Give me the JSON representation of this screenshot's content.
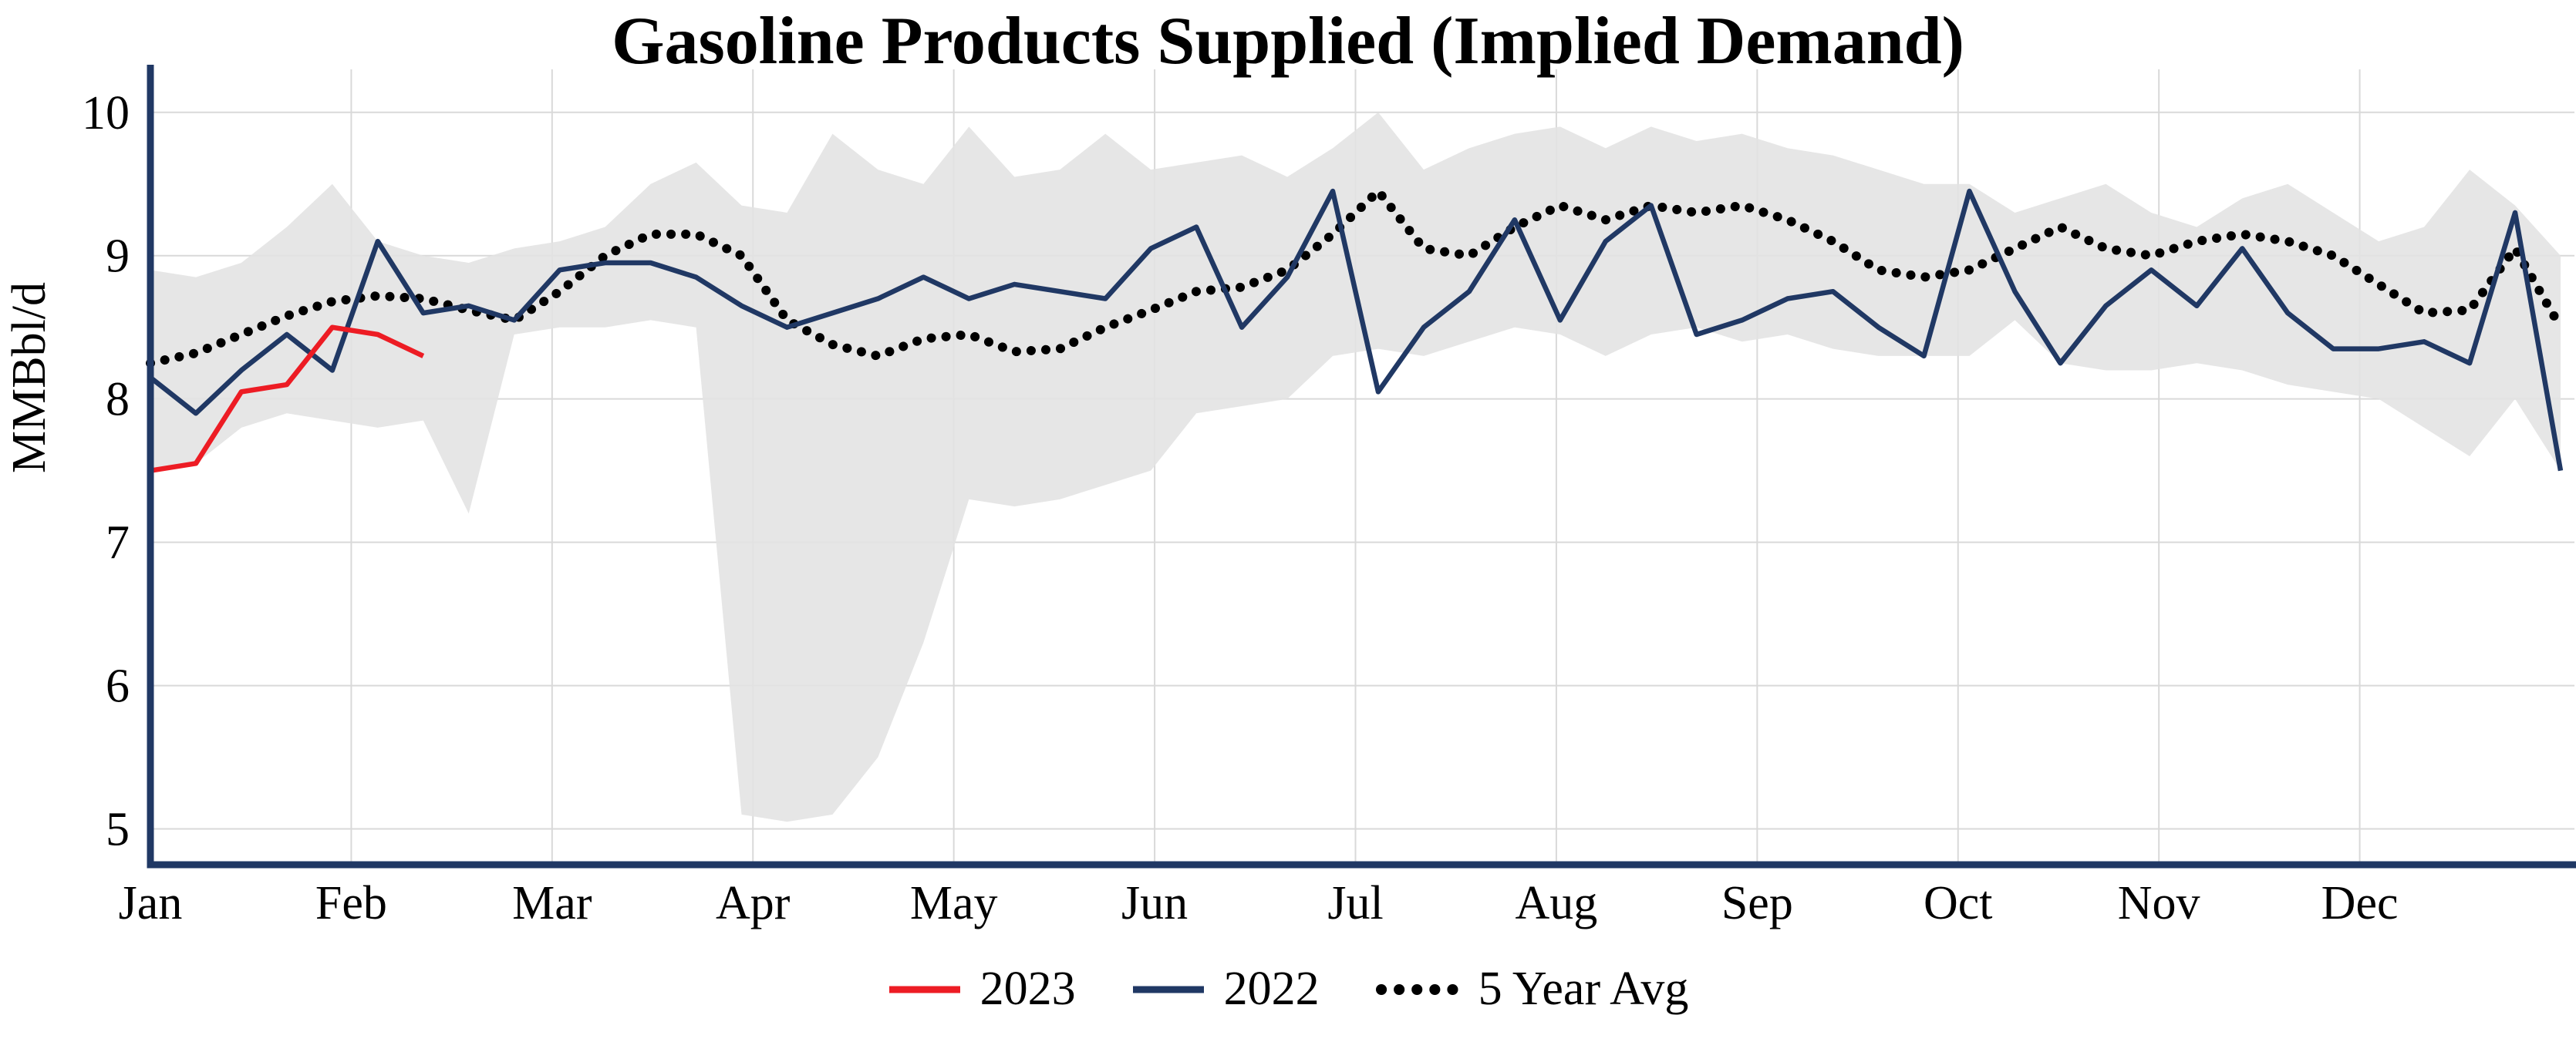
{
  "colors": {
    "axis": "#203864",
    "grid": "#d9d9d9",
    "band": "#e2e2e2",
    "text": "#000000"
  },
  "chart_data": {
    "type": "line",
    "title": "Gasoline Products Supplied (Implied Demand)",
    "ylabel": "MMBbl/d",
    "y_ticks": [
      5,
      6,
      7,
      8,
      9,
      10
    ],
    "ylim": [
      5,
      10
    ],
    "y_range_drawn": [
      4.75,
      10.3
    ],
    "x_unit": "weekly points, Jan through Dec",
    "x_tick_labels": [
      "Jan",
      "Feb",
      "Mar",
      "Apr",
      "May",
      "Jun",
      "Jul",
      "Aug",
      "Sep",
      "Oct",
      "Nov",
      "Dec"
    ],
    "grid": true,
    "band": {
      "name": "5-year min-max range",
      "fill": "#e2e2e2",
      "upper": [
        8.9,
        8.85,
        8.95,
        9.2,
        9.5,
        9.1,
        9.0,
        8.95,
        9.05,
        9.1,
        9.2,
        9.5,
        9.65,
        9.35,
        9.3,
        9.85,
        9.6,
        9.5,
        9.9,
        9.55,
        9.6,
        9.85,
        9.6,
        9.65,
        9.7,
        9.55,
        9.75,
        10.0,
        9.6,
        9.75,
        9.85,
        9.9,
        9.75,
        9.9,
        9.8,
        9.85,
        9.75,
        9.7,
        9.6,
        9.5,
        9.5,
        9.3,
        9.4,
        9.5,
        9.3,
        9.2,
        9.4,
        9.5,
        9.3,
        9.1,
        9.2,
        9.6,
        9.35,
        9.0
      ],
      "lower": [
        7.5,
        7.55,
        7.8,
        7.9,
        7.85,
        7.8,
        7.85,
        7.2,
        8.45,
        8.5,
        8.5,
        8.55,
        8.5,
        5.1,
        5.05,
        5.1,
        5.5,
        6.3,
        7.3,
        7.25,
        7.3,
        7.4,
        7.5,
        7.9,
        7.95,
        8.0,
        8.3,
        8.35,
        8.3,
        8.4,
        8.5,
        8.45,
        8.3,
        8.45,
        8.5,
        8.4,
        8.45,
        8.35,
        8.3,
        8.3,
        8.3,
        8.55,
        8.25,
        8.2,
        8.2,
        8.25,
        8.2,
        8.1,
        8.05,
        8.0,
        7.8,
        7.6,
        8.0,
        7.5
      ]
    },
    "series": [
      {
        "name": "2023",
        "color": "#ed1c24",
        "dash": "solid",
        "start_index": 0,
        "values": [
          7.5,
          7.55,
          8.05,
          8.1,
          8.5,
          8.45,
          8.3
        ]
      },
      {
        "name": "2022",
        "color": "#203864",
        "dash": "solid",
        "start_index": 0,
        "values": [
          8.15,
          7.9,
          8.2,
          8.45,
          8.2,
          9.1,
          8.6,
          8.65,
          8.55,
          8.9,
          8.95,
          8.95,
          8.85,
          8.65,
          8.5,
          8.6,
          8.7,
          8.85,
          8.7,
          8.8,
          8.75,
          8.7,
          9.05,
          9.2,
          8.5,
          8.85,
          9.45,
          8.05,
          8.5,
          8.75,
          9.25,
          8.55,
          9.1,
          9.35,
          8.45,
          8.55,
          8.7,
          8.75,
          8.5,
          8.3,
          9.45,
          8.75,
          8.25,
          8.65,
          8.9,
          8.65,
          9.05,
          8.6,
          8.35,
          8.35,
          8.4,
          8.25,
          9.3,
          7.5
        ]
      },
      {
        "name": "5 Year Avg",
        "color": "#000000",
        "dash": "dotted",
        "start_index": 0,
        "values": [
          8.25,
          8.32,
          8.45,
          8.58,
          8.68,
          8.72,
          8.7,
          8.62,
          8.55,
          8.75,
          9.0,
          9.15,
          9.15,
          9.0,
          8.55,
          8.38,
          8.3,
          8.42,
          8.45,
          8.33,
          8.35,
          8.5,
          8.62,
          8.75,
          8.78,
          8.9,
          9.15,
          9.45,
          9.05,
          9.0,
          9.2,
          9.35,
          9.25,
          9.35,
          9.3,
          9.35,
          9.25,
          9.1,
          8.9,
          8.85,
          8.9,
          9.05,
          9.2,
          9.05,
          9.0,
          9.1,
          9.15,
          9.1,
          9.0,
          8.8,
          8.6,
          8.62,
          9.05,
          8.5
        ]
      }
    ],
    "legend": {
      "position": "bottom-center",
      "items": [
        "2023",
        "2022",
        "5 Year Avg"
      ]
    }
  }
}
